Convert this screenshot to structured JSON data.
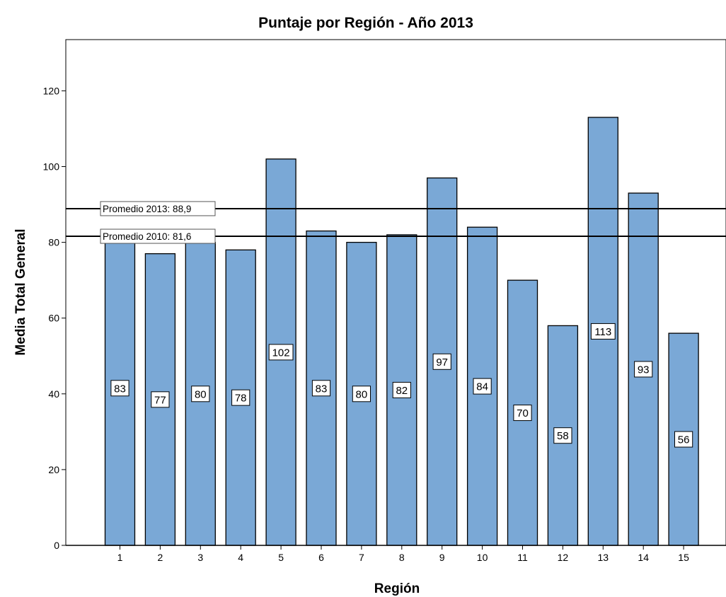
{
  "chart_data": {
    "type": "bar",
    "title": "Puntaje por Región - Año 2013",
    "xlabel": "Región",
    "ylabel": "Media Total General",
    "categories": [
      "1",
      "2",
      "3",
      "4",
      "5",
      "6",
      "7",
      "8",
      "9",
      "10",
      "11",
      "12",
      "13",
      "14",
      "15"
    ],
    "values": [
      83,
      77,
      80,
      78,
      102,
      83,
      80,
      82,
      97,
      84,
      70,
      58,
      113,
      93,
      56
    ],
    "data_labels": [
      "83",
      "77",
      "80",
      "78",
      "102",
      "83",
      "80",
      "82",
      "97",
      "84",
      "70",
      "58",
      "113",
      "93",
      "56"
    ],
    "ylim": [
      0,
      130
    ],
    "yticks": [
      0,
      20,
      40,
      60,
      80,
      100,
      120
    ],
    "ytick_labels": [
      "0",
      "20",
      "40",
      "60",
      "80",
      "100",
      "120"
    ],
    "reference_lines": [
      {
        "label": "Promedio 2013: 88,9",
        "value": 88.9
      },
      {
        "label": "Promedio 2010: 81,6",
        "value": 81.6
      }
    ],
    "grid": false,
    "legend": "none",
    "bar_color": "#7AA8D6"
  }
}
